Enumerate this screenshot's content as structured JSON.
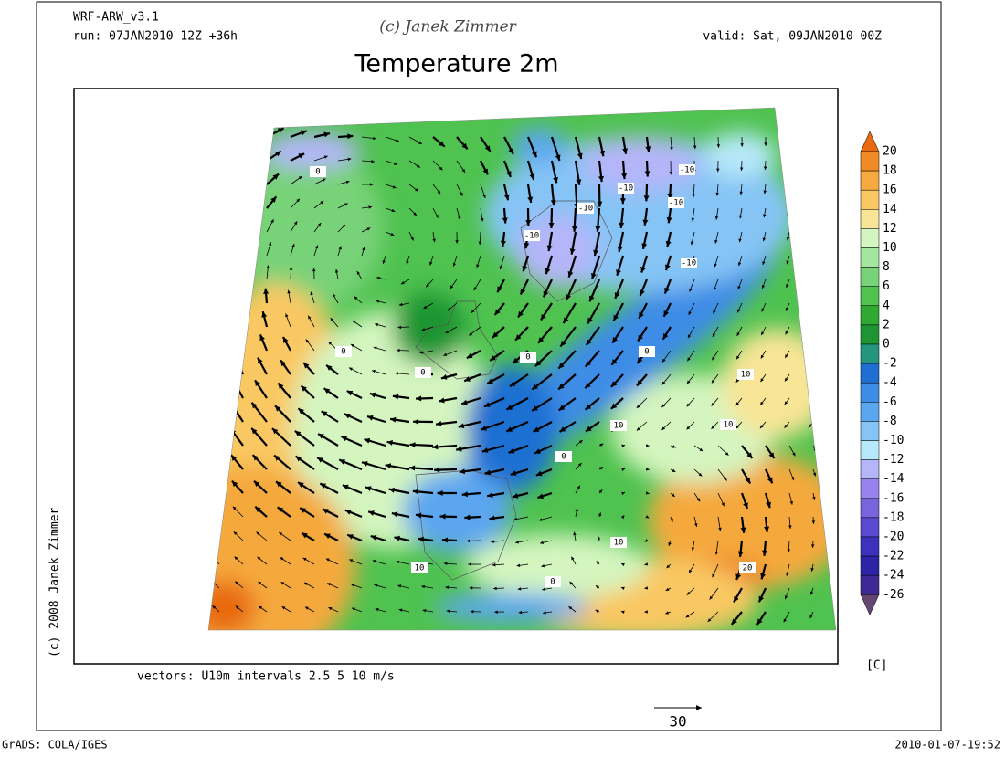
{
  "header": {
    "model": "WRF-ARW_v3.1",
    "run": "run: 07JAN2010 12Z +36h",
    "copyright": "(c) Janek Zimmer",
    "valid": "valid: Sat, 09JAN2010 00Z",
    "title": "Temperature 2m"
  },
  "colorbar": {
    "labels": [
      20,
      18,
      16,
      14,
      12,
      10,
      8,
      6,
      4,
      2,
      0,
      -2,
      -4,
      -6,
      -8,
      -10,
      -12,
      -14,
      -16,
      -18,
      -20,
      -22,
      -24,
      -26
    ],
    "colors": [
      "#e8690f",
      "#f08a26",
      "#f5a93e",
      "#f9c862",
      "#f8e595",
      "#d4f5bf",
      "#a2e6a0",
      "#78d278",
      "#4fc24f",
      "#30a932",
      "#1d9532",
      "#24967d",
      "#1f6fd2",
      "#3d8ce6",
      "#5ba6f0",
      "#85c4f5",
      "#b7e8fa",
      "#b5b5fa",
      "#9782f0",
      "#7864dc",
      "#5a4bd2",
      "#3c32be",
      "#2d23a5",
      "#3c2896",
      "#644673"
    ],
    "unit": "[C]"
  },
  "contour_labels": [
    0,
    -10,
    -10,
    -10,
    -10,
    -10,
    -10,
    0,
    0,
    0,
    0,
    10,
    10,
    10,
    0,
    10,
    0,
    10,
    20
  ],
  "vector_note": "vectors: U10m intervals 2.5 5 10 m/s",
  "reference_vector": "30",
  "side_copyright": "(c) 2008 Janek Zimmer",
  "footer": {
    "left": "GrADS: COLA/IGES",
    "right": "2010-01-07-19:52"
  }
}
